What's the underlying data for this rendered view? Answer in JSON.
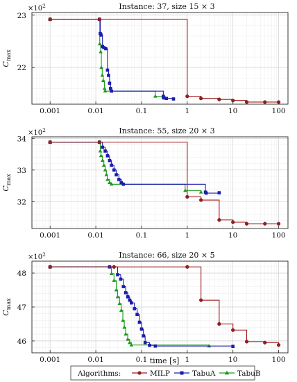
{
  "chart_data": {
    "type": "line",
    "x_scale": "log",
    "x_ticks": [
      "0.001",
      "0.01",
      "0.1",
      "1",
      "10",
      "100"
    ],
    "xlabel": "time [s]",
    "ylabel_main": "C",
    "ylabel_sub": "max",
    "y_multiplier_base": "×10",
    "y_multiplier_exp": "2",
    "grid": true,
    "legend": {
      "title": "Algorithms:",
      "placement": "bottom",
      "entries": [
        "MILP",
        "TabuA",
        "TabuB"
      ]
    },
    "colors": {
      "MILP": "#9b1c1c",
      "TabuA": "#1c1cb0",
      "TabuB": "#1a9a1a"
    },
    "panels": [
      {
        "title": "Instance: 37, size 15 × 3",
        "xlim": [
          0.0004,
          160
        ],
        "ylim": [
          21.3,
          23.05
        ],
        "yticks": [
          {
            "v": 22,
            "label": "22"
          },
          {
            "v": 23,
            "label": "23"
          }
        ],
        "series": [
          {
            "name": "MILP",
            "points": [
              [
                0.001,
                22.92
              ],
              [
                0.012,
                22.92
              ],
              [
                1,
                21.45
              ],
              [
                2,
                21.41
              ],
              [
                5,
                21.39
              ],
              [
                10,
                21.37
              ],
              [
                20,
                21.34
              ],
              [
                50,
                21.34
              ],
              [
                100,
                21.34
              ]
            ]
          },
          {
            "name": "TabuA",
            "points": [
              [
                0.001,
                22.92
              ],
              [
                0.012,
                22.92
              ],
              [
                0.0125,
                22.65
              ],
              [
                0.013,
                22.62
              ],
              [
                0.014,
                22.4
              ],
              [
                0.015,
                22.38
              ],
              [
                0.0165,
                22.36
              ],
              [
                0.018,
                21.95
              ],
              [
                0.019,
                21.85
              ],
              [
                0.02,
                21.7
              ],
              [
                0.021,
                21.6
              ],
              [
                0.022,
                21.55
              ],
              [
                0.3,
                21.45
              ],
              [
                0.31,
                21.42
              ],
              [
                0.35,
                21.41
              ],
              [
                0.5,
                21.4
              ]
            ]
          },
          {
            "name": "TabuB",
            "points": [
              [
                0.001,
                22.92
              ],
              [
                0.012,
                22.92
              ],
              [
                0.0122,
                22.45
              ],
              [
                0.0128,
                22.3
              ],
              [
                0.0132,
                22.0
              ],
              [
                0.0138,
                21.85
              ],
              [
                0.0145,
                21.75
              ],
              [
                0.0155,
                21.6
              ],
              [
                0.016,
                21.55
              ],
              [
                0.2,
                21.45
              ],
              [
                0.3,
                21.43
              ]
            ]
          }
        ]
      },
      {
        "title": "Instance: 55, size 20 × 3",
        "xlim": [
          0.0004,
          160
        ],
        "ylim": [
          31.15,
          34.05
        ],
        "yticks": [
          {
            "v": 32,
            "label": "32"
          },
          {
            "v": 33,
            "label": "33"
          },
          {
            "v": 34,
            "label": "34"
          }
        ],
        "series": [
          {
            "name": "MILP",
            "points": [
              [
                0.001,
                33.88
              ],
              [
                0.012,
                33.88
              ],
              [
                1,
                32.15
              ],
              [
                2,
                32.05
              ],
              [
                5,
                31.42
              ],
              [
                10,
                31.35
              ],
              [
                20,
                31.3
              ],
              [
                50,
                31.3
              ],
              [
                100,
                31.3
              ]
            ]
          },
          {
            "name": "TabuA",
            "points": [
              [
                0.001,
                33.88
              ],
              [
                0.012,
                33.88
              ],
              [
                0.014,
                33.72
              ],
              [
                0.016,
                33.6
              ],
              [
                0.018,
                33.45
              ],
              [
                0.02,
                33.3
              ],
              [
                0.022,
                33.15
              ],
              [
                0.025,
                33.0
              ],
              [
                0.028,
                32.85
              ],
              [
                0.032,
                32.7
              ],
              [
                0.036,
                32.6
              ],
              [
                0.04,
                32.55
              ],
              [
                2.5,
                32.3
              ],
              [
                2.6,
                32.27
              ],
              [
                5,
                32.28
              ]
            ]
          },
          {
            "name": "TabuB",
            "points": [
              [
                0.001,
                33.88
              ],
              [
                0.012,
                33.88
              ],
              [
                0.0125,
                33.6
              ],
              [
                0.013,
                33.45
              ],
              [
                0.014,
                33.3
              ],
              [
                0.015,
                33.15
              ],
              [
                0.016,
                33.0
              ],
              [
                0.017,
                32.85
              ],
              [
                0.018,
                32.7
              ],
              [
                0.02,
                32.6
              ],
              [
                0.022,
                32.55
              ],
              [
                0.9,
                32.35
              ],
              [
                2,
                32.3
              ]
            ]
          }
        ]
      },
      {
        "title": "Instance: 66, size 20 × 5",
        "xlim": [
          0.0004,
          160
        ],
        "ylim": [
          45.65,
          48.35
        ],
        "yticks": [
          {
            "v": 46,
            "label": "46"
          },
          {
            "v": 47,
            "label": "47"
          },
          {
            "v": 48,
            "label": "48"
          }
        ],
        "series": [
          {
            "name": "MILP",
            "points": [
              [
                0.001,
                48.18
              ],
              [
                0.025,
                48.18
              ],
              [
                1,
                48.18
              ],
              [
                2,
                47.2
              ],
              [
                5,
                46.5
              ],
              [
                10,
                46.32
              ],
              [
                20,
                45.98
              ],
              [
                50,
                45.95
              ],
              [
                100,
                45.88
              ]
            ]
          },
          {
            "name": "TabuA",
            "points": [
              [
                0.001,
                48.18
              ],
              [
                0.02,
                48.18
              ],
              [
                0.03,
                47.95
              ],
              [
                0.035,
                47.82
              ],
              [
                0.04,
                47.6
              ],
              [
                0.045,
                47.42
              ],
              [
                0.05,
                47.3
              ],
              [
                0.055,
                47.2
              ],
              [
                0.06,
                47.12
              ],
              [
                0.07,
                46.95
              ],
              [
                0.08,
                46.78
              ],
              [
                0.09,
                46.55
              ],
              [
                0.1,
                46.35
              ],
              [
                0.11,
                46.15
              ],
              [
                0.12,
                45.95
              ],
              [
                0.15,
                45.87
              ],
              [
                0.2,
                45.85
              ],
              [
                10,
                45.84
              ]
            ]
          },
          {
            "name": "TabuB",
            "points": [
              [
                0.001,
                48.18
              ],
              [
                0.02,
                48.18
              ],
              [
                0.022,
                47.98
              ],
              [
                0.025,
                47.78
              ],
              [
                0.028,
                47.5
              ],
              [
                0.03,
                47.3
              ],
              [
                0.033,
                47.1
              ],
              [
                0.036,
                46.9
              ],
              [
                0.039,
                46.6
              ],
              [
                0.042,
                46.4
              ],
              [
                0.045,
                46.2
              ],
              [
                0.05,
                46.05
              ],
              [
                0.055,
                45.95
              ],
              [
                0.06,
                45.88
              ],
              [
                3,
                45.85
              ]
            ]
          }
        ]
      }
    ]
  }
}
